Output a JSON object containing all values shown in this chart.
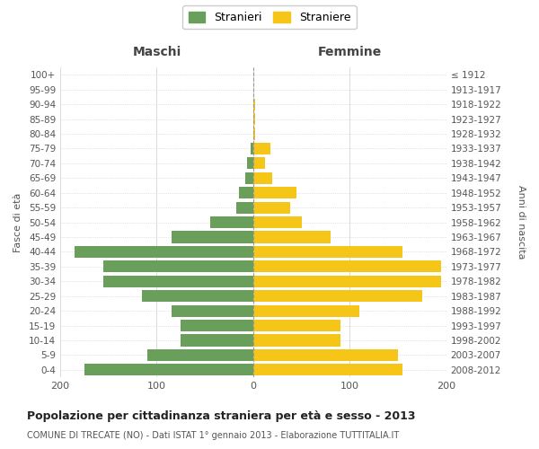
{
  "age_groups": [
    "0-4",
    "5-9",
    "10-14",
    "15-19",
    "20-24",
    "25-29",
    "30-34",
    "35-39",
    "40-44",
    "45-49",
    "50-54",
    "55-59",
    "60-64",
    "65-69",
    "70-74",
    "75-79",
    "80-84",
    "85-89",
    "90-94",
    "95-99",
    "100+"
  ],
  "birth_years": [
    "2008-2012",
    "2003-2007",
    "1998-2002",
    "1993-1997",
    "1988-1992",
    "1983-1987",
    "1978-1982",
    "1973-1977",
    "1968-1972",
    "1963-1967",
    "1958-1962",
    "1953-1957",
    "1948-1952",
    "1943-1947",
    "1938-1942",
    "1933-1937",
    "1928-1932",
    "1923-1927",
    "1918-1922",
    "1913-1917",
    "≤ 1912"
  ],
  "maschi": [
    175,
    110,
    75,
    75,
    85,
    115,
    155,
    155,
    185,
    85,
    45,
    18,
    15,
    8,
    6,
    3,
    0,
    0,
    0,
    0,
    0
  ],
  "femmine": [
    155,
    150,
    90,
    90,
    110,
    175,
    195,
    195,
    155,
    80,
    50,
    38,
    45,
    20,
    12,
    18,
    2,
    2,
    2,
    0,
    0
  ],
  "maschi_color": "#6a9e5b",
  "femmine_color": "#f5c518",
  "background_color": "#ffffff",
  "grid_color": "#cccccc",
  "title": "Popolazione per cittadinanza straniera per età e sesso - 2013",
  "subtitle": "COMUNE DI TRECATE (NO) - Dati ISTAT 1° gennaio 2013 - Elaborazione TUTTITALIA.IT",
  "left_label": "Maschi",
  "right_label": "Femmine",
  "ylabel_left": "Fasce di età",
  "ylabel_right": "Anni di nascita",
  "legend_maschi": "Stranieri",
  "legend_femmine": "Straniere",
  "xlim": 200,
  "bar_height": 0.8
}
